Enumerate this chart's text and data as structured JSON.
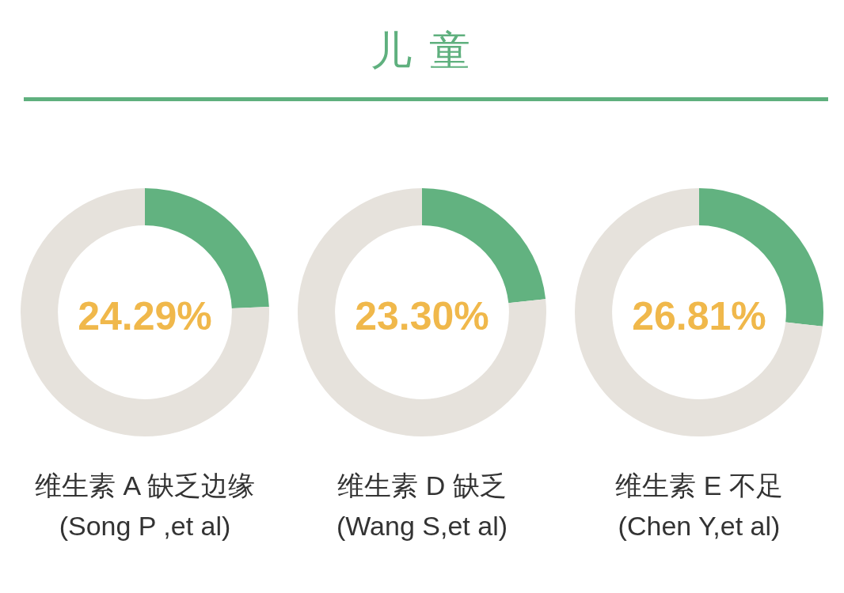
{
  "chart_data": [
    {
      "type": "other",
      "title": "儿 童"
    },
    {
      "type": "donut",
      "categories": [
        null,
        null
      ],
      "values": [
        24.29,
        75.71
      ],
      "colors": [
        "#62b280",
        "#e6e2dc"
      ],
      "xlabel": "维生素 A 缺乏边缘",
      "annotations": [
        "24.29%",
        "(Song P ,et al)"
      ],
      "legend": false
    },
    {
      "type": "donut",
      "categories": [
        null,
        null
      ],
      "values": [
        23.3,
        76.7
      ],
      "colors": [
        "#62b280",
        "#e6e2dc"
      ],
      "xlabel": "维生素 D 缺乏",
      "annotations": [
        "23.30%",
        "(Wang S,et al)"
      ],
      "legend": false
    },
    {
      "type": "donut",
      "categories": [
        null,
        null
      ],
      "values": [
        26.81,
        73.19
      ],
      "colors": [
        "#62b280",
        "#e6e2dc"
      ],
      "xlabel": "维生素 E 不足",
      "annotations": [
        "26.81%",
        "(Chen Y,et al)"
      ],
      "legend": false
    }
  ]
}
